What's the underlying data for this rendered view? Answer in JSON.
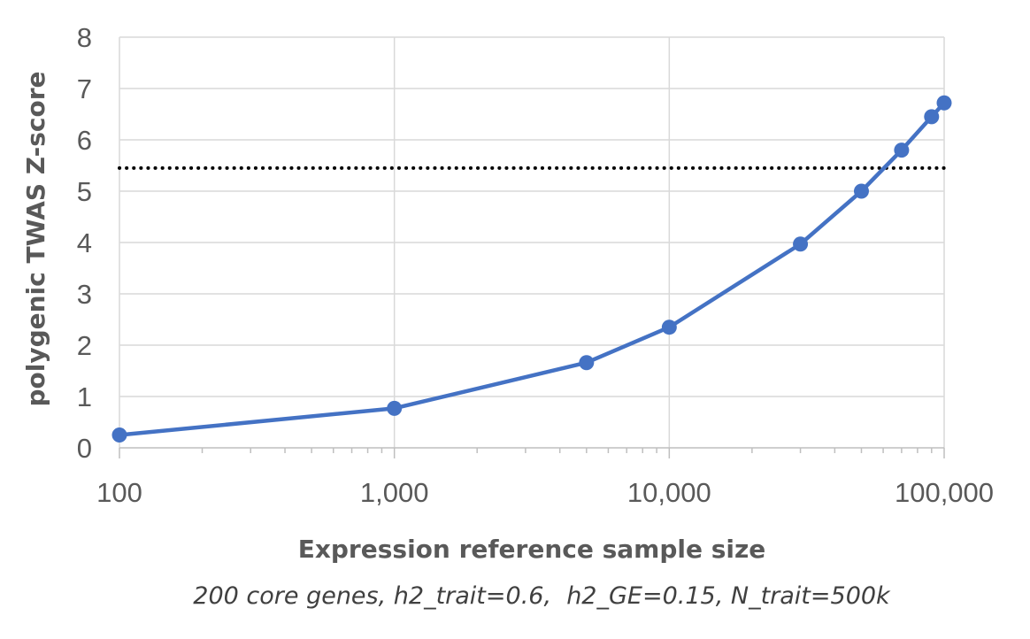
{
  "chart_data": {
    "type": "line",
    "title": "",
    "xlabel": "Expression reference sample size",
    "ylabel": "polygenic TWAS Z-score",
    "caption": "200 core genes, h2_trait=0.6,  h2_GE=0.15, N_trait=500k",
    "x_scale": "log",
    "xlim": [
      100,
      100000
    ],
    "ylim": [
      0,
      8
    ],
    "x_ticks": [
      100,
      1000,
      10000,
      100000
    ],
    "x_tick_labels": [
      "100",
      "1,000",
      "10,000",
      "100,000"
    ],
    "y_ticks": [
      0,
      1,
      2,
      3,
      4,
      5,
      6,
      7,
      8
    ],
    "y_tick_labels": [
      "0",
      "1",
      "2",
      "3",
      "4",
      "5",
      "6",
      "7",
      "8"
    ],
    "grid": true,
    "legend": "none",
    "series": [
      {
        "color": "#4472C4",
        "x": [
          100,
          1000,
          5000,
          10000,
          30000,
          50000,
          70000,
          90000,
          100000
        ],
        "y": [
          0.25,
          0.77,
          1.66,
          2.35,
          3.97,
          5.0,
          5.8,
          6.45,
          6.72
        ]
      }
    ],
    "reference_lines": [
      {
        "y": 5.45,
        "style": "dotted",
        "color": "#000000"
      }
    ]
  }
}
